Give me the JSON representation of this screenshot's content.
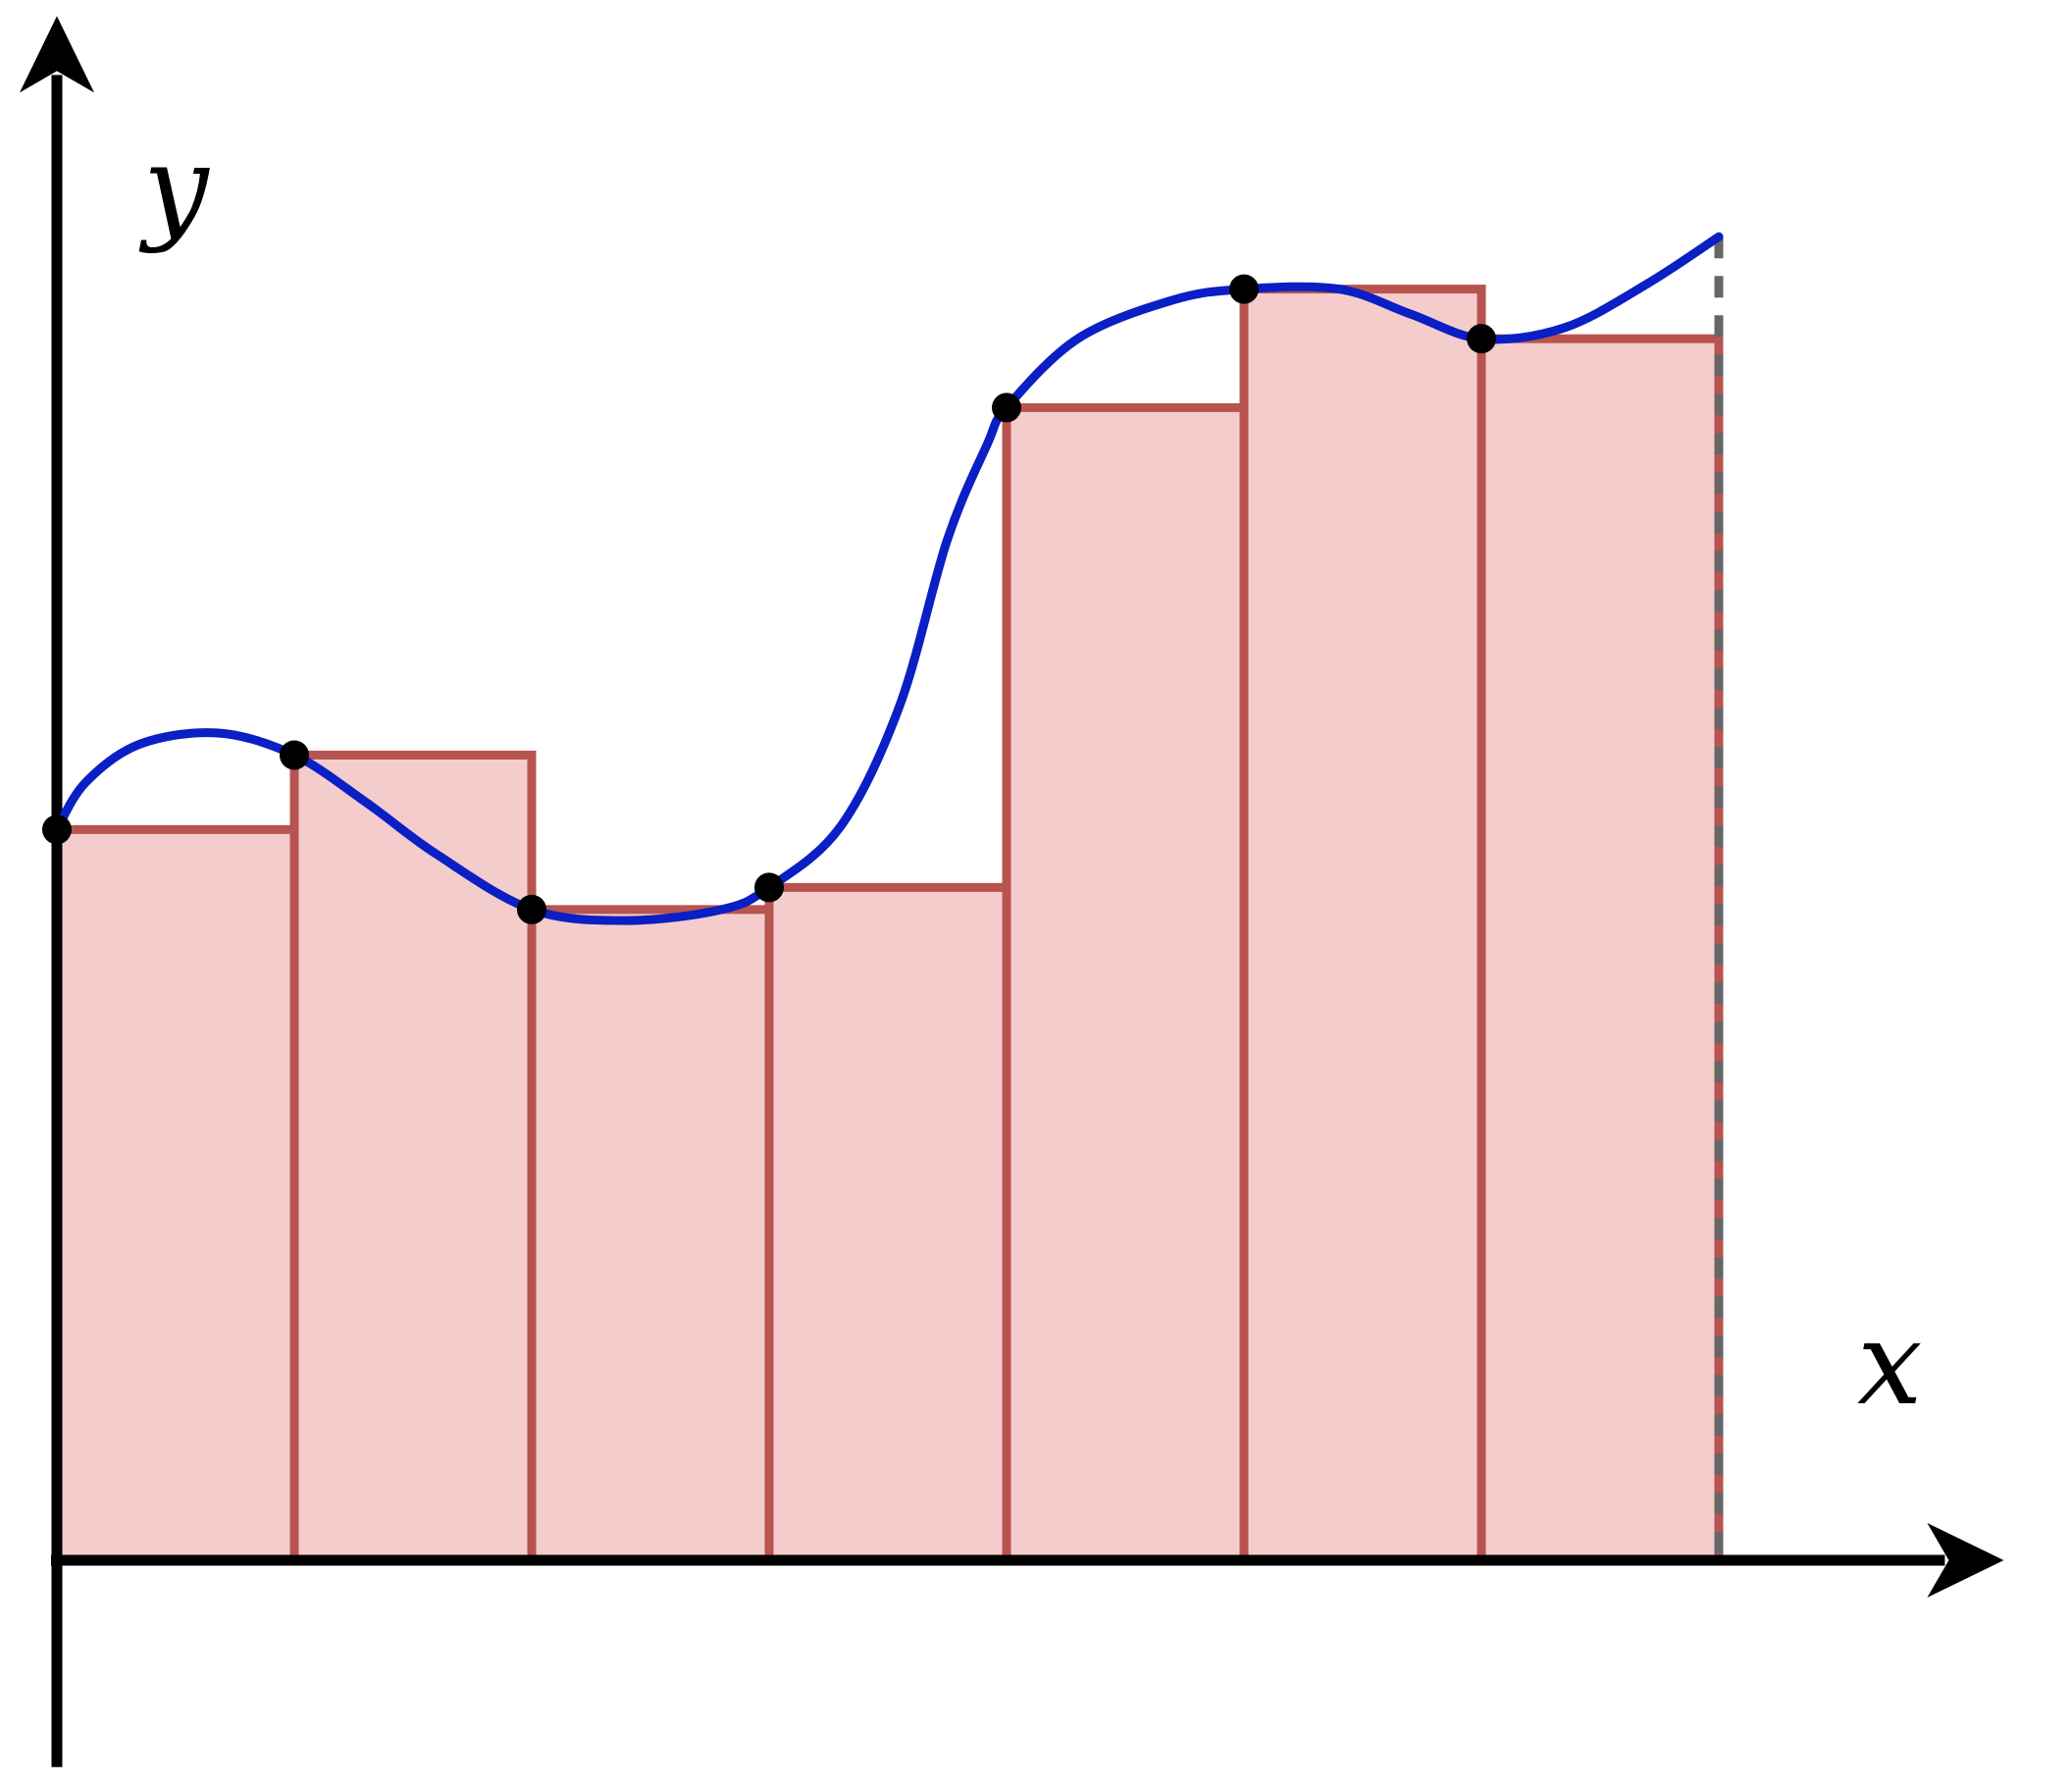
{
  "diagram": {
    "type": "left-endpoint Riemann sum",
    "x_axis_label": "x",
    "y_axis_label": "y",
    "colors": {
      "axis": "#000000",
      "curve": "#0a1fc4",
      "rect_fill": "#f5cccc",
      "rect_stroke": "#b85450",
      "sample_point": "#000000",
      "right_boundary_dash": "#666666"
    }
  },
  "chart_data": {
    "type": "area",
    "rectangle_count": 7,
    "partition_x": [
      0,
      1,
      2,
      3,
      4,
      5,
      6,
      7
    ],
    "rectangle_heights": [
      2.65,
      2.92,
      2.36,
      2.44,
      4.18,
      4.61,
      4.43
    ],
    "sample_points": [
      {
        "x": 0,
        "y": 2.65
      },
      {
        "x": 1,
        "y": 2.92
      },
      {
        "x": 2,
        "y": 2.36
      },
      {
        "x": 3,
        "y": 2.44
      },
      {
        "x": 4,
        "y": 4.18
      },
      {
        "x": 5,
        "y": 4.61
      },
      {
        "x": 6,
        "y": 4.43
      }
    ],
    "curve_points": [
      [
        0.0,
        2.65
      ],
      [
        0.12,
        2.82
      ],
      [
        0.35,
        2.96
      ],
      [
        0.68,
        3.0
      ],
      [
        1.0,
        2.92
      ],
      [
        1.3,
        2.75
      ],
      [
        1.6,
        2.56
      ],
      [
        2.0,
        2.36
      ],
      [
        2.4,
        2.32
      ],
      [
        2.8,
        2.36
      ],
      [
        3.0,
        2.44
      ],
      [
        3.3,
        2.66
      ],
      [
        3.55,
        3.1
      ],
      [
        3.75,
        3.7
      ],
      [
        3.92,
        4.05
      ],
      [
        4.0,
        4.18
      ],
      [
        4.3,
        4.43
      ],
      [
        4.7,
        4.57
      ],
      [
        5.0,
        4.61
      ],
      [
        5.4,
        4.61
      ],
      [
        5.7,
        4.52
      ],
      [
        6.0,
        4.43
      ],
      [
        6.35,
        4.47
      ],
      [
        6.7,
        4.63
      ],
      [
        7.0,
        4.8
      ]
    ],
    "xlim": [
      0,
      8.2
    ],
    "ylim": [
      -0.75,
      5.6
    ],
    "grid": false,
    "legend": "none"
  }
}
